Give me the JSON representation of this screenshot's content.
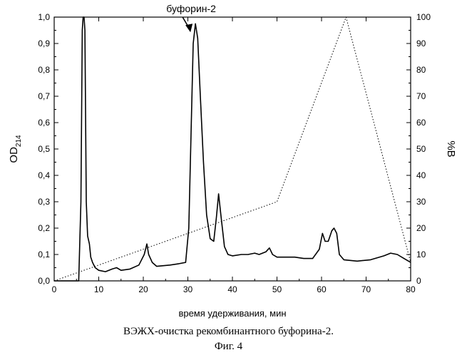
{
  "chart_data": {
    "type": "line",
    "xlabel": "время удерживания, мин",
    "ylabel_left_main": "OD",
    "ylabel_left_sub": "214",
    "ylabel_right": "%B",
    "xlim": [
      0,
      80
    ],
    "ylim_left": [
      0,
      1.0
    ],
    "ylim_right": [
      0,
      100
    ],
    "x_ticks": [
      "0",
      "10",
      "20",
      "30",
      "40",
      "50",
      "60",
      "70",
      "80"
    ],
    "y_left_ticks": [
      "0,0",
      "0,1",
      "0,2",
      "0,3",
      "0,4",
      "0,5",
      "0,6",
      "0,7",
      "0,8",
      "0,9",
      "1,0"
    ],
    "y_right_ticks": [
      "0",
      "10",
      "20",
      "30",
      "40",
      "50",
      "60",
      "70",
      "80",
      "90",
      "100"
    ],
    "grid": false,
    "annotation": {
      "text": "буфорин-2",
      "x": 31.7,
      "y": 0.975
    },
    "series": [
      {
        "axis": "left",
        "style": "solid",
        "points": [
          [
            0,
            0.0
          ],
          [
            5.5,
            0.0
          ],
          [
            6.0,
            0.3
          ],
          [
            6.3,
            0.95
          ],
          [
            6.5,
            1.0
          ],
          [
            6.7,
            1.0
          ],
          [
            6.9,
            0.95
          ],
          [
            7.2,
            0.3
          ],
          [
            7.5,
            0.17
          ],
          [
            7.9,
            0.14
          ],
          [
            8.2,
            0.09
          ],
          [
            8.6,
            0.07
          ],
          [
            9.2,
            0.05
          ],
          [
            10,
            0.04
          ],
          [
            11.5,
            0.035
          ],
          [
            13,
            0.045
          ],
          [
            14,
            0.05
          ],
          [
            15,
            0.04
          ],
          [
            17,
            0.045
          ],
          [
            19,
            0.06
          ],
          [
            20.2,
            0.1
          ],
          [
            20.8,
            0.14
          ],
          [
            21.2,
            0.1
          ],
          [
            22,
            0.07
          ],
          [
            23,
            0.055
          ],
          [
            26,
            0.06
          ],
          [
            28,
            0.065
          ],
          [
            29.5,
            0.07
          ],
          [
            30.2,
            0.2
          ],
          [
            30.7,
            0.55
          ],
          [
            31.2,
            0.9
          ],
          [
            31.7,
            0.975
          ],
          [
            32.2,
            0.92
          ],
          [
            32.8,
            0.7
          ],
          [
            33.5,
            0.45
          ],
          [
            34.2,
            0.25
          ],
          [
            35,
            0.16
          ],
          [
            35.8,
            0.15
          ],
          [
            36.4,
            0.24
          ],
          [
            36.9,
            0.33
          ],
          [
            37.4,
            0.25
          ],
          [
            38.2,
            0.13
          ],
          [
            39,
            0.1
          ],
          [
            40,
            0.095
          ],
          [
            42,
            0.1
          ],
          [
            43.5,
            0.1
          ],
          [
            45,
            0.105
          ],
          [
            46,
            0.1
          ],
          [
            47.5,
            0.11
          ],
          [
            48.3,
            0.125
          ],
          [
            49,
            0.1
          ],
          [
            50,
            0.09
          ],
          [
            52,
            0.09
          ],
          [
            54,
            0.09
          ],
          [
            56,
            0.085
          ],
          [
            58,
            0.085
          ],
          [
            59.5,
            0.12
          ],
          [
            60.2,
            0.18
          ],
          [
            60.8,
            0.15
          ],
          [
            61.5,
            0.15
          ],
          [
            62.3,
            0.19
          ],
          [
            62.8,
            0.2
          ],
          [
            63.4,
            0.18
          ],
          [
            64,
            0.1
          ],
          [
            65,
            0.08
          ],
          [
            68,
            0.075
          ],
          [
            71,
            0.08
          ],
          [
            74,
            0.095
          ],
          [
            75.5,
            0.105
          ],
          [
            77,
            0.1
          ],
          [
            78.5,
            0.085
          ],
          [
            80,
            0.07
          ]
        ]
      },
      {
        "axis": "right",
        "style": "dotted",
        "points": [
          [
            0,
            0
          ],
          [
            50,
            30
          ],
          [
            65.5,
            100
          ],
          [
            80,
            7
          ]
        ]
      }
    ]
  },
  "caption": {
    "line1": "ВЭЖХ-очистка рекомбинантного буфорина-2.",
    "line2": "Фиг. 4"
  }
}
